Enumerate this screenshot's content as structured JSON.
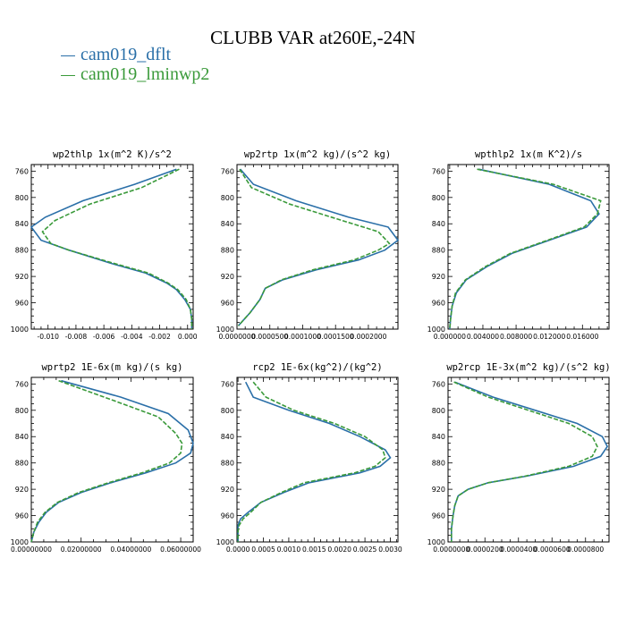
{
  "title": "CLUBB VAR at260E,-24N",
  "colors": {
    "series_a": "#2a6fa8",
    "series_b": "#3a9a3a"
  },
  "legend": [
    {
      "label": "cam019_dflt",
      "color": "#2a6fa8",
      "style": "solid"
    },
    {
      "label": "cam019_lminwp2",
      "color": "#3a9a3a",
      "style": "dashed"
    }
  ],
  "chart_data": [
    {
      "type": "line",
      "title": "wp2thlp  1x(m^2 K)/s^2",
      "ylim": [
        1000,
        750
      ],
      "y_inverted": true,
      "yticks": [
        760,
        800,
        840,
        880,
        920,
        960,
        1000
      ],
      "xlim": [
        -0.0112,
        0.0004
      ],
      "xticks": [
        -0.01,
        -0.008,
        -0.006,
        -0.004,
        -0.002,
        0.0
      ],
      "xtick_labels": [
        "-0.010",
        "-0.008",
        "-0.006",
        "-0.004",
        "-0.002",
        "0.000"
      ],
      "series": [
        {
          "name": "cam019_dflt",
          "y": [
            757,
            780,
            805,
            830,
            845,
            865,
            880,
            900,
            915,
            930,
            940,
            955,
            970,
            985,
            1000
          ],
          "x": [
            -0.0008,
            -0.0038,
            -0.0075,
            -0.0102,
            -0.0112,
            -0.0105,
            -0.0085,
            -0.0055,
            -0.003,
            -0.0015,
            -0.0008,
            -0.0002,
            0.0002,
            0.0003,
            0.0003
          ]
        },
        {
          "name": "cam019_lminwp2",
          "y": [
            757,
            785,
            810,
            835,
            852,
            870,
            880,
            900,
            915,
            930,
            940,
            955,
            970,
            985,
            1000
          ],
          "x": [
            -0.0006,
            -0.0033,
            -0.007,
            -0.0095,
            -0.0104,
            -0.0098,
            -0.0085,
            -0.0053,
            -0.0028,
            -0.0014,
            -0.0007,
            -0.0001,
            0.0002,
            0.0003,
            0.0003
          ]
        }
      ]
    },
    {
      "type": "line",
      "title": "wp2rtp  1x(m^2 kg)/(s^2 kg)",
      "ylim": [
        1000,
        750
      ],
      "y_inverted": true,
      "yticks": [
        760,
        800,
        840,
        880,
        920,
        960,
        1000
      ],
      "xlim": [
        0,
        0.000245
      ],
      "xticks": [
        0,
        5e-05,
        0.0001,
        0.00015,
        0.0002
      ],
      "xtick_labels": [
        "0.0000000",
        "0.0000500",
        "0.0001000",
        "0.0001500",
        "0.0002000"
      ],
      "series": [
        {
          "name": "cam019_dflt",
          "y": [
            757,
            780,
            805,
            830,
            845,
            865,
            880,
            895,
            910,
            925,
            938,
            955,
            975,
            995
          ],
          "x": [
            5e-06,
            2.5e-05,
            9e-05,
            0.00017,
            0.00023,
            0.000245,
            0.000225,
            0.000185,
            0.00012,
            7e-05,
            4.3e-05,
            3.5e-05,
            2e-05,
            2e-06
          ]
        },
        {
          "name": "cam019_lminwp2",
          "y": [
            757,
            785,
            810,
            835,
            852,
            870,
            880,
            895,
            910,
            925,
            938,
            955,
            975,
            995
          ],
          "x": [
            4e-06,
            2.2e-05,
            8e-05,
            0.00016,
            0.000215,
            0.000232,
            0.000215,
            0.000178,
            0.000115,
            6.8e-05,
            4.3e-05,
            3.5e-05,
            2e-05,
            2e-06
          ]
        }
      ]
    },
    {
      "type": "line",
      "title": "wpthlp2  1x(m K^2)/s",
      "ylim": [
        1000,
        750
      ],
      "y_inverted": true,
      "yticks": [
        760,
        800,
        840,
        880,
        920,
        960,
        1000
      ],
      "xlim": [
        -0.0002,
        0.0192
      ],
      "xticks": [
        0,
        0.004,
        0.008,
        0.012,
        0.016
      ],
      "xtick_labels": [
        "0.000000",
        "0.004000",
        "0.008000",
        "0.012000",
        "0.016000"
      ],
      "series": [
        {
          "name": "cam019_dflt",
          "y": [
            757,
            780,
            805,
            825,
            845,
            865,
            885,
            905,
            925,
            945,
            965,
            985,
            1000
          ],
          "x": [
            0.0035,
            0.012,
            0.017,
            0.018,
            0.0165,
            0.012,
            0.0075,
            0.0045,
            0.002,
            0.0008,
            0.0003,
            0.0001,
            0.0
          ]
        },
        {
          "name": "cam019_lminwp2",
          "y": [
            757,
            780,
            805,
            825,
            845,
            865,
            885,
            905,
            925,
            945,
            965,
            985,
            1000
          ],
          "x": [
            0.0033,
            0.0125,
            0.0182,
            0.0178,
            0.0162,
            0.0118,
            0.0073,
            0.0043,
            0.0019,
            0.0007,
            0.0003,
            0.0001,
            0.0
          ]
        }
      ]
    },
    {
      "type": "line",
      "title": "wprtp2  1E-6x(m kg)/(s kg)",
      "ylim": [
        1000,
        750
      ],
      "y_inverted": true,
      "yticks": [
        760,
        800,
        840,
        880,
        920,
        960,
        1000
      ],
      "xlim": [
        0,
        0.065
      ],
      "xticks": [
        0,
        0.02,
        0.04,
        0.06
      ],
      "xtick_labels": [
        "0.00000000",
        "0.02000000",
        "0.04000000",
        "0.06000000"
      ],
      "series": [
        {
          "name": "cam019_dflt",
          "y": [
            755,
            780,
            805,
            830,
            850,
            865,
            880,
            895,
            910,
            925,
            940,
            955,
            970,
            985,
            1000
          ],
          "x": [
            0.012,
            0.036,
            0.055,
            0.063,
            0.065,
            0.064,
            0.058,
            0.046,
            0.032,
            0.02,
            0.011,
            0.006,
            0.003,
            0.001,
            0.0
          ]
        },
        {
          "name": "cam019_lminwp2",
          "y": [
            755,
            785,
            810,
            835,
            850,
            865,
            880,
            895,
            910,
            925,
            940,
            955,
            970,
            985,
            1000
          ],
          "x": [
            0.011,
            0.033,
            0.051,
            0.058,
            0.0605,
            0.06,
            0.0555,
            0.0445,
            0.031,
            0.019,
            0.0105,
            0.0055,
            0.0025,
            0.001,
            0.0
          ]
        }
      ]
    },
    {
      "type": "line",
      "title": "rcp2  1E-6x(kg^2)/(kg^2)",
      "ylim": [
        1000,
        750
      ],
      "y_inverted": true,
      "yticks": [
        760,
        800,
        840,
        880,
        920,
        960,
        1000
      ],
      "xlim": [
        -2e-05,
        0.00315
      ],
      "xticks": [
        0,
        0.0005,
        0.001,
        0.0015,
        0.002,
        0.0025,
        0.003
      ],
      "xtick_labels": [
        "0.0000",
        "0.0005",
        "0.0010",
        "0.0015",
        "0.0020",
        "0.0025",
        "0.0030"
      ],
      "series": [
        {
          "name": "cam019_dflt",
          "y": [
            757,
            780,
            800,
            820,
            840,
            860,
            872,
            885,
            895,
            910,
            925,
            940,
            955,
            965,
            975,
            985,
            1000
          ],
          "x": [
            0.00015,
            0.0003,
            0.001,
            0.0018,
            0.0024,
            0.0029,
            0.003,
            0.0028,
            0.0024,
            0.0014,
            0.0009,
            0.00045,
            0.0002,
            5e-05,
            0.0,
            0.0,
            0.0
          ]
        },
        {
          "name": "cam019_lminwp2",
          "y": [
            757,
            780,
            800,
            820,
            840,
            860,
            872,
            885,
            895,
            910,
            925,
            940,
            955,
            965,
            975,
            985,
            1000
          ],
          "x": [
            0.0003,
            0.00055,
            0.0011,
            0.0019,
            0.0025,
            0.00285,
            0.0029,
            0.0027,
            0.0023,
            0.0013,
            0.00085,
            0.00045,
            0.00025,
            0.0001,
            2e-05,
            0.0,
            0.0
          ]
        }
      ]
    },
    {
      "type": "line",
      "title": "wp2rcp  1E-3x(m^2 kg)/(s^2 kg)",
      "ylim": [
        1000,
        750
      ],
      "y_inverted": true,
      "yticks": [
        760,
        800,
        840,
        880,
        920,
        960,
        1000
      ],
      "xlim": [
        -2e-06,
        9.4e-05
      ],
      "xticks": [
        0,
        2e-05,
        4e-05,
        6e-05,
        8e-05
      ],
      "xtick_labels": [
        "0.0000000",
        "0.0000200",
        "0.0000400",
        "0.0000600",
        "0.0000800"
      ],
      "series": [
        {
          "name": "cam019_dflt",
          "y": [
            757,
            780,
            800,
            820,
            840,
            855,
            870,
            885,
            900,
            910,
            920,
            930,
            945,
            960,
            980,
            1000
          ],
          "x": [
            2e-06,
            2.5e-05,
            5e-05,
            7.5e-05,
            9e-05,
            9.3e-05,
            8.9e-05,
            7.3e-05,
            4.5e-05,
            2.2e-05,
            1e-05,
            4e-06,
            2e-06,
            1e-06,
            0.0,
            0.0
          ]
        },
        {
          "name": "cam019_lminwp2",
          "y": [
            757,
            780,
            800,
            820,
            840,
            855,
            870,
            885,
            900,
            910,
            920,
            930,
            945,
            960,
            980,
            1000
          ],
          "x": [
            1.5e-06,
            2.2e-05,
            4.6e-05,
            7e-05,
            8.4e-05,
            8.7e-05,
            8.4e-05,
            7e-05,
            4.4e-05,
            2.2e-05,
            1e-05,
            4e-06,
            2e-06,
            1e-06,
            0.0,
            0.0
          ]
        }
      ]
    }
  ]
}
